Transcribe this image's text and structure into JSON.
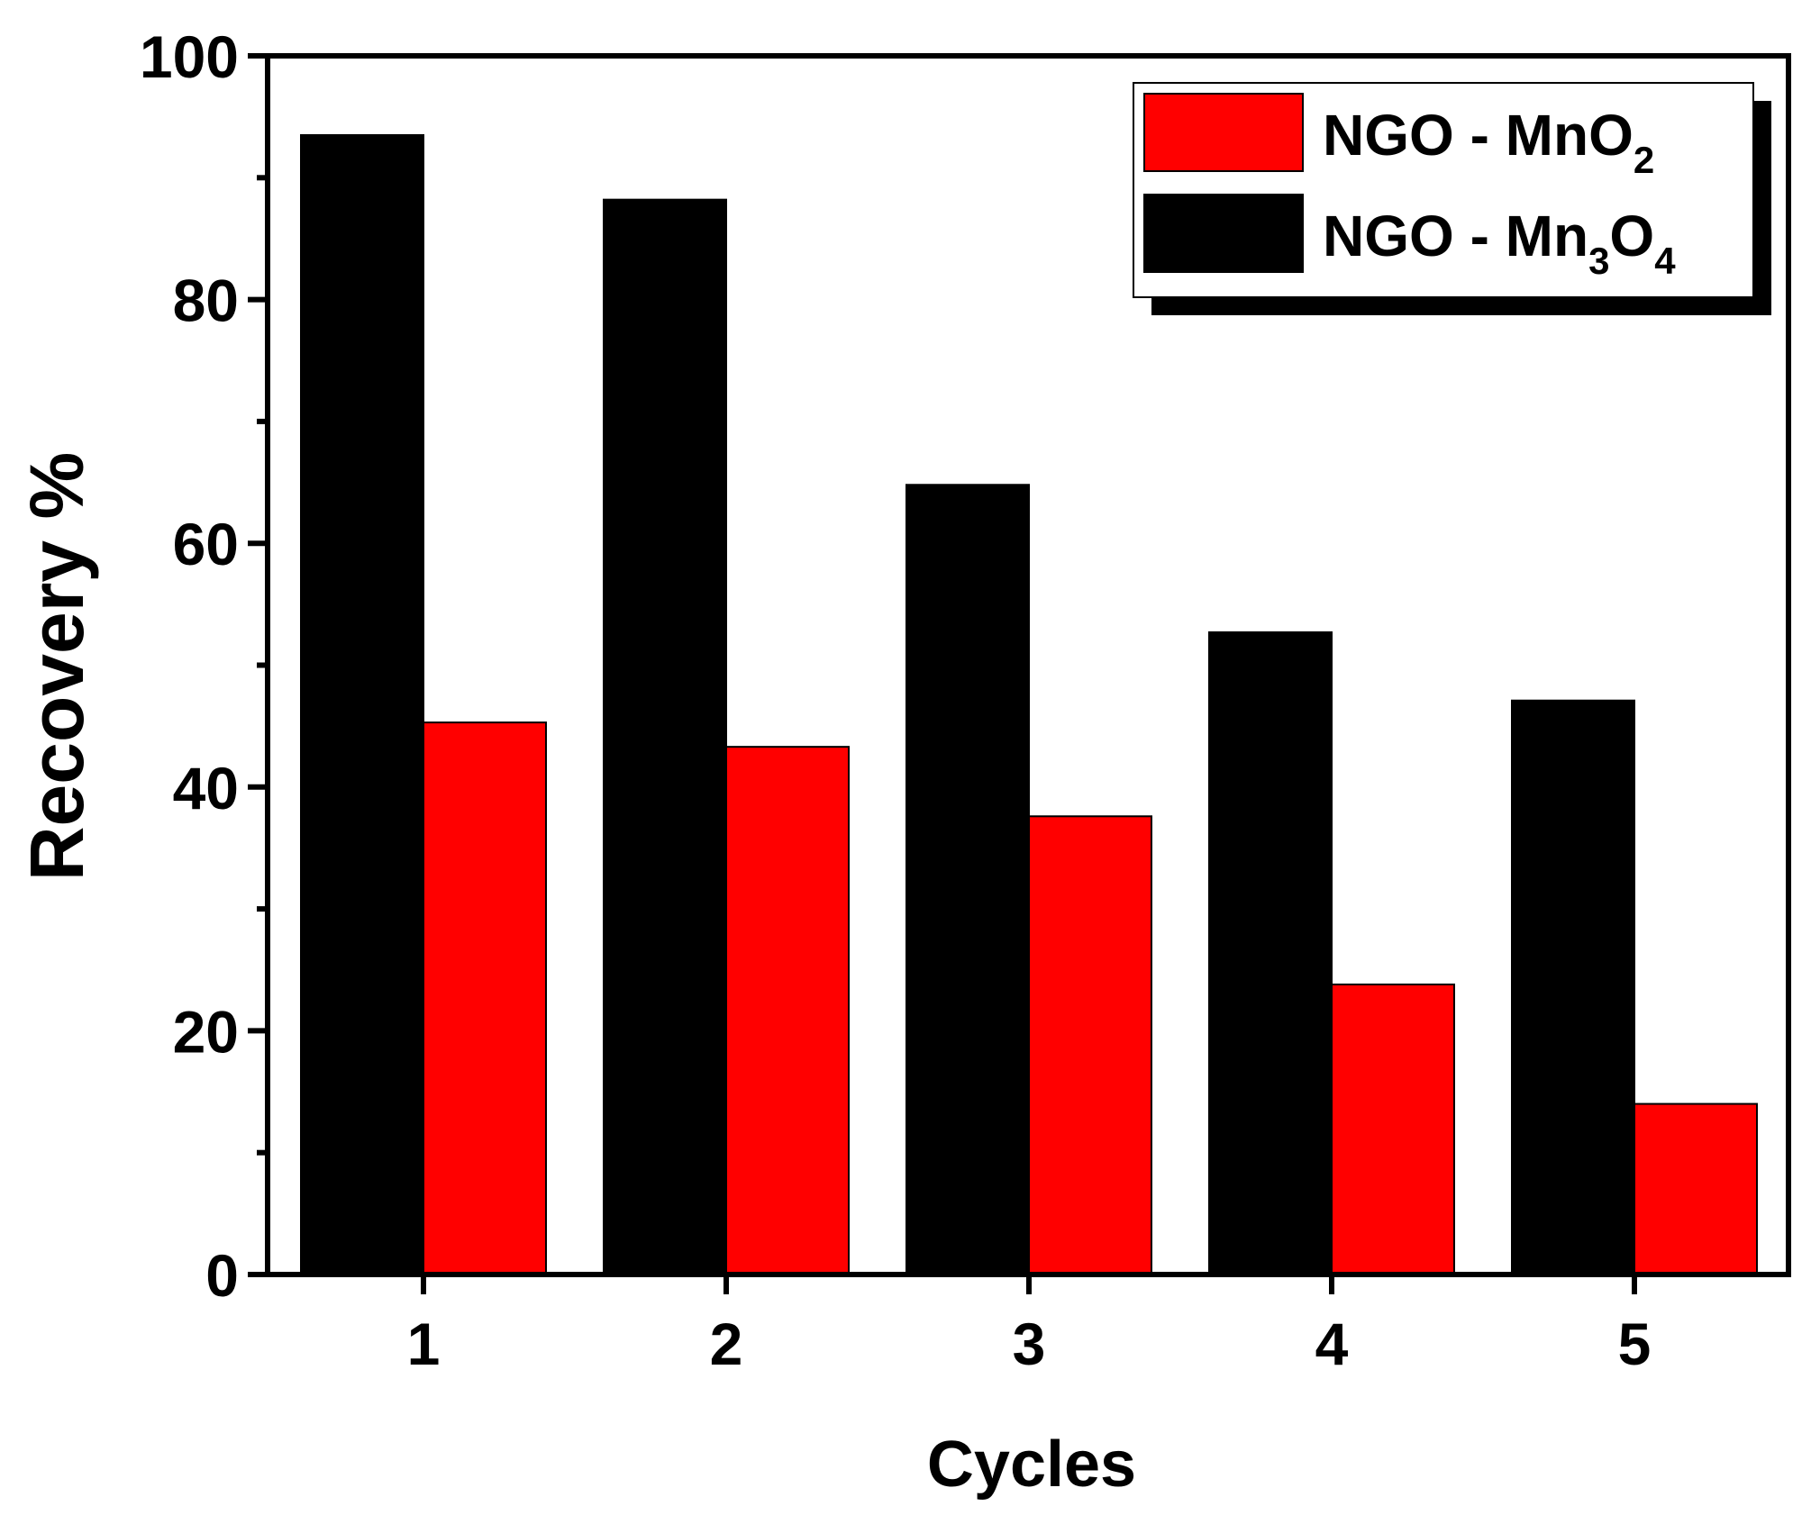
{
  "chart_data": {
    "type": "bar",
    "title": "",
    "xlabel": "Cycles",
    "ylabel": "Recovery %",
    "categories": [
      "1",
      "2",
      "3",
      "4",
      "5"
    ],
    "ylim": [
      0,
      100
    ],
    "yticks": [
      0,
      20,
      40,
      60,
      80,
      100
    ],
    "y_minor_ticks": [
      10,
      30,
      50,
      70,
      90
    ],
    "grid": false,
    "legend_position": "top-right",
    "series": [
      {
        "name": "NGO - Mn3O4",
        "label_main": "NGO - Mn",
        "label_sub1": "3",
        "label_mid": "O",
        "label_sub2": "4",
        "color": "#000000",
        "values": [
          93.5,
          88.2,
          64.8,
          52.7,
          47.1
        ]
      },
      {
        "name": "NGO - MnO2",
        "label_main": "NGO - MnO",
        "label_sub1": "2",
        "label_mid": "",
        "label_sub2": "",
        "color": "#ff0000",
        "values": [
          45.3,
          43.3,
          37.6,
          23.8,
          14.0
        ]
      }
    ]
  }
}
